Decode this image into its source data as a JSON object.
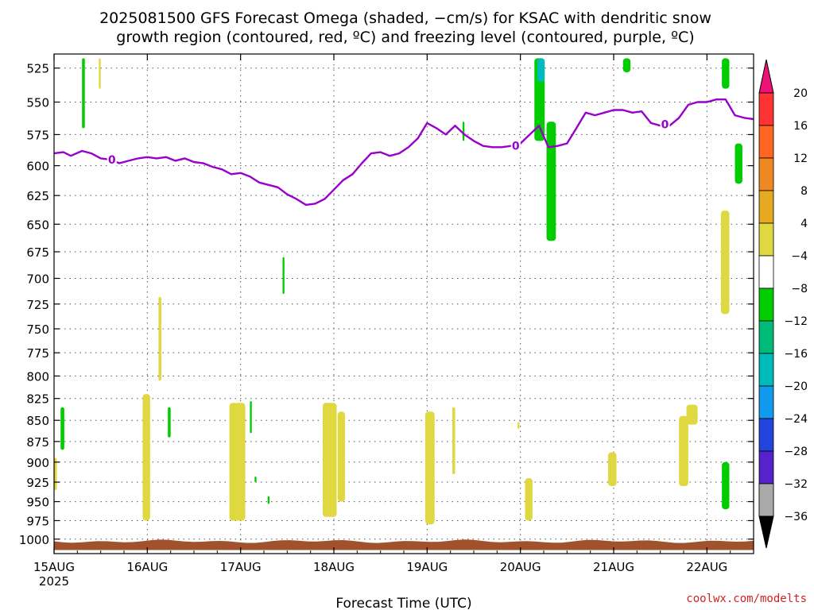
{
  "title_line1": "2025081500 GFS Forecast Omega (shaded, −cm/s) for KSAC with dendritic snow",
  "title_line2": "growth region (contoured, red, ºC) and freezing level (contoured, purple, ºC)",
  "credit": "coolwx.com/modelts",
  "chart_data": {
    "type": "heatmap",
    "title": "2025081500 GFS Forecast Omega (shaded, −cm/s) for KSAC with dendritic snow growth region (contoured, red, ºC) and freezing level (contoured, purple, ºC)",
    "xlabel": "Forecast Time (UTC)",
    "ylabel": "",
    "x_unit": "days since 15AUG 00 UTC",
    "xlim": [
      0,
      7.5
    ],
    "ylim_pressure_hPa": [
      1020,
      515
    ],
    "x_ticks": [
      {
        "x": 0,
        "label": "15AUG",
        "sub": "2025"
      },
      {
        "x": 1,
        "label": "16AUG",
        "sub": ""
      },
      {
        "x": 2,
        "label": "17AUG",
        "sub": ""
      },
      {
        "x": 3,
        "label": "18AUG",
        "sub": ""
      },
      {
        "x": 4,
        "label": "19AUG",
        "sub": ""
      },
      {
        "x": 5,
        "label": "20AUG",
        "sub": ""
      },
      {
        "x": 6,
        "label": "21AUG",
        "sub": ""
      },
      {
        "x": 7,
        "label": "22AUG",
        "sub": ""
      }
    ],
    "y_ticks": [
      525,
      550,
      575,
      600,
      625,
      650,
      675,
      700,
      725,
      750,
      775,
      800,
      825,
      850,
      875,
      900,
      925,
      950,
      975,
      1000
    ],
    "grid": true,
    "freezing_level": {
      "label": "0",
      "color": "#9900cc",
      "points": [
        [
          0.0,
          590
        ],
        [
          0.1,
          589
        ],
        [
          0.18,
          592
        ],
        [
          0.3,
          588
        ],
        [
          0.4,
          590
        ],
        [
          0.5,
          594
        ],
        [
          0.6,
          595
        ],
        [
          0.7,
          598
        ],
        [
          0.8,
          596
        ],
        [
          0.9,
          594
        ],
        [
          1.0,
          593
        ],
        [
          1.1,
          594
        ],
        [
          1.2,
          593
        ],
        [
          1.3,
          596
        ],
        [
          1.4,
          594
        ],
        [
          1.5,
          597
        ],
        [
          1.6,
          598
        ],
        [
          1.7,
          601
        ],
        [
          1.8,
          603
        ],
        [
          1.9,
          607
        ],
        [
          2.0,
          606
        ],
        [
          2.1,
          609
        ],
        [
          2.2,
          614
        ],
        [
          2.4,
          618
        ],
        [
          2.5,
          624
        ],
        [
          2.6,
          628
        ],
        [
          2.7,
          633
        ],
        [
          2.8,
          632
        ],
        [
          2.9,
          628
        ],
        [
          3.0,
          620
        ],
        [
          3.1,
          612
        ],
        [
          3.2,
          607
        ],
        [
          3.3,
          598
        ],
        [
          3.4,
          590
        ],
        [
          3.5,
          589
        ],
        [
          3.6,
          592
        ],
        [
          3.7,
          590
        ],
        [
          3.8,
          585
        ],
        [
          3.9,
          578
        ],
        [
          4.0,
          566
        ],
        [
          4.1,
          570
        ],
        [
          4.2,
          575
        ],
        [
          4.3,
          568
        ],
        [
          4.4,
          575
        ],
        [
          4.5,
          580
        ],
        [
          4.6,
          584
        ],
        [
          4.7,
          585
        ],
        [
          4.8,
          585
        ],
        [
          4.9,
          584
        ],
        [
          5.0,
          582
        ],
        [
          5.1,
          575
        ],
        [
          5.2,
          568
        ],
        [
          5.3,
          585
        ],
        [
          5.4,
          584
        ],
        [
          5.5,
          582
        ],
        [
          5.6,
          570
        ],
        [
          5.7,
          558
        ],
        [
          5.8,
          560
        ],
        [
          5.9,
          558
        ],
        [
          6.0,
          556
        ],
        [
          6.1,
          556
        ],
        [
          6.2,
          558
        ],
        [
          6.3,
          557
        ],
        [
          6.4,
          566
        ],
        [
          6.5,
          568
        ],
        [
          6.6,
          568
        ],
        [
          6.7,
          562
        ],
        [
          6.8,
          552
        ],
        [
          6.9,
          550
        ],
        [
          7.0,
          550
        ],
        [
          7.1,
          548
        ],
        [
          7.2,
          548
        ],
        [
          7.3,
          560
        ],
        [
          7.4,
          562
        ],
        [
          7.5,
          563
        ]
      ],
      "contour_labels": [
        [
          0.62,
          595
        ],
        [
          4.95,
          584
        ],
        [
          6.55,
          567
        ]
      ]
    },
    "surface_band": {
      "color": "#a0522d",
      "top_hPa": 1003,
      "bottom_hPa": 1015
    },
    "omega_patches": [
      {
        "x0": 0.3,
        "x1": 0.33,
        "p_top": 518,
        "p_bot": 570,
        "value": -8,
        "color": "#00cc00"
      },
      {
        "x0": 0.48,
        "x1": 0.5,
        "p_top": 518,
        "p_bot": 540,
        "value": 4,
        "color": "#e0d840"
      },
      {
        "x0": 0.07,
        "x1": 0.11,
        "p_top": 835,
        "p_bot": 885,
        "value": -8,
        "color": "#00cc00"
      },
      {
        "x0": -0.02,
        "x1": 0.03,
        "p_top": 895,
        "p_bot": 935,
        "value": 4,
        "color": "#e0d840"
      },
      {
        "x0": 0.95,
        "x1": 1.03,
        "p_top": 820,
        "p_bot": 975,
        "value": 4,
        "color": "#e0d840"
      },
      {
        "x0": 1.22,
        "x1": 1.25,
        "p_top": 835,
        "p_bot": 870,
        "value": -8,
        "color": "#00cc00"
      },
      {
        "x0": 1.12,
        "x1": 1.15,
        "p_top": 718,
        "p_bot": 805,
        "value": 4,
        "color": "#e0d840"
      },
      {
        "x0": 1.88,
        "x1": 2.05,
        "p_top": 830,
        "p_bot": 975,
        "value": 4,
        "color": "#e0d840"
      },
      {
        "x0": 2.1,
        "x1": 2.12,
        "p_top": 828,
        "p_bot": 865,
        "value": -8,
        "color": "#00cc00"
      },
      {
        "x0": 2.15,
        "x1": 2.17,
        "p_top": 918,
        "p_bot": 925,
        "value": -8,
        "color": "#00cc00"
      },
      {
        "x0": 2.29,
        "x1": 2.31,
        "p_top": 943,
        "p_bot": 953,
        "value": -8,
        "color": "#00cc00"
      },
      {
        "x0": 2.45,
        "x1": 2.47,
        "p_top": 680,
        "p_bot": 715,
        "value": -8,
        "color": "#00cc00"
      },
      {
        "x0": 2.88,
        "x1": 3.03,
        "p_top": 830,
        "p_bot": 970,
        "value": 4,
        "color": "#e0d840"
      },
      {
        "x0": 3.04,
        "x1": 3.12,
        "p_top": 840,
        "p_bot": 950,
        "value": 4,
        "color": "#e0d840"
      },
      {
        "x0": 3.98,
        "x1": 4.08,
        "p_top": 840,
        "p_bot": 980,
        "value": 4,
        "color": "#e0d840"
      },
      {
        "x0": 4.27,
        "x1": 4.3,
        "p_top": 835,
        "p_bot": 915,
        "value": 4,
        "color": "#e0d840"
      },
      {
        "x0": 4.38,
        "x1": 4.4,
        "p_top": 565,
        "p_bot": 580,
        "value": -8,
        "color": "#00cc00"
      },
      {
        "x0": 4.97,
        "x1": 4.99,
        "p_top": 852,
        "p_bot": 860,
        "value": 4,
        "color": "#e0d840"
      },
      {
        "x0": 5.05,
        "x1": 5.13,
        "p_top": 920,
        "p_bot": 975,
        "value": 4,
        "color": "#e0d840"
      },
      {
        "x0": 5.15,
        "x1": 5.26,
        "p_top": 518,
        "p_bot": 580,
        "value": -8,
        "color": "#00cc00"
      },
      {
        "x0": 5.18,
        "x1": 5.26,
        "p_top": 518,
        "p_bot": 535,
        "value": -16,
        "color": "#00bbbb"
      },
      {
        "x0": 5.28,
        "x1": 5.38,
        "p_top": 565,
        "p_bot": 665,
        "value": -8,
        "color": "#00cc00"
      },
      {
        "x0": 5.94,
        "x1": 6.03,
        "p_top": 888,
        "p_bot": 930,
        "value": 4,
        "color": "#e0d840"
      },
      {
        "x0": 6.1,
        "x1": 6.18,
        "p_top": 518,
        "p_bot": 528,
        "value": -8,
        "color": "#00cc00"
      },
      {
        "x0": 6.7,
        "x1": 6.8,
        "p_top": 845,
        "p_bot": 930,
        "value": 4,
        "color": "#e0d840"
      },
      {
        "x0": 6.78,
        "x1": 6.9,
        "p_top": 832,
        "p_bot": 855,
        "value": 4,
        "color": "#e0d840"
      },
      {
        "x0": 7.15,
        "x1": 7.24,
        "p_top": 638,
        "p_bot": 735,
        "value": 4,
        "color": "#e0d840"
      },
      {
        "x0": 7.16,
        "x1": 7.24,
        "p_top": 518,
        "p_bot": 540,
        "value": -8,
        "color": "#00cc00"
      },
      {
        "x0": 7.16,
        "x1": 7.24,
        "p_top": 900,
        "p_bot": 960,
        "value": -8,
        "color": "#00cc00"
      },
      {
        "x0": 7.3,
        "x1": 7.38,
        "p_top": 582,
        "p_bot": 615,
        "value": -8,
        "color": "#00cc00"
      }
    ],
    "colorbar": {
      "levels": [
        {
          "label": "20",
          "color": "#ff3333"
        },
        {
          "label": "16",
          "color": "#ff6622"
        },
        {
          "label": "12",
          "color": "#ee8822"
        },
        {
          "label": "8",
          "color": "#e6aa22"
        },
        {
          "label": "4",
          "color": "#e0d840"
        },
        {
          "label": "−4",
          "color": "#ffffff"
        },
        {
          "label": "−8",
          "color": "#00cc00"
        },
        {
          "label": "−12",
          "color": "#00bb77"
        },
        {
          "label": "−16",
          "color": "#00bbbb"
        },
        {
          "label": "−20",
          "color": "#1199ee"
        },
        {
          "label": "−24",
          "color": "#2244dd"
        },
        {
          "label": "−28",
          "color": "#5522cc"
        },
        {
          "label": "−32",
          "color": "#9900cc"
        },
        {
          "label": "−36",
          "color": "#aaaaaa"
        }
      ],
      "top_arrow_color": "#ee1177",
      "bottom_arrow_color": "#000000"
    }
  }
}
